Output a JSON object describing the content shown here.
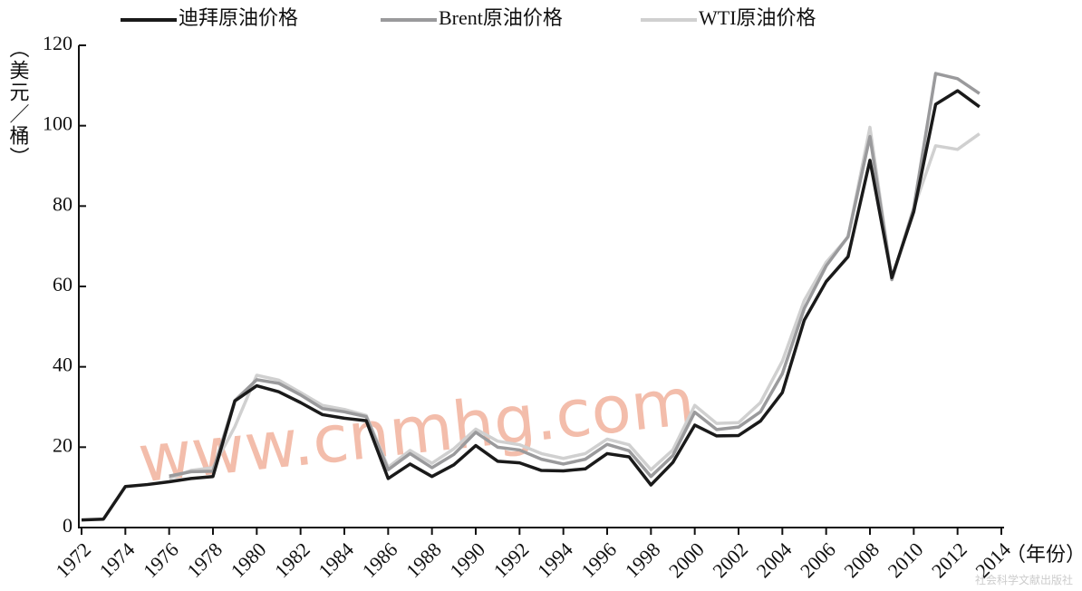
{
  "chart_data": {
    "type": "line",
    "y_label": "（美元／桶）",
    "x_label": "（年份）",
    "watermark": "www.cnmhg.com",
    "credit": "社会科学文献出版社",
    "x": [
      1972,
      1973,
      1974,
      1975,
      1976,
      1977,
      1978,
      1979,
      1980,
      1981,
      1982,
      1983,
      1984,
      1985,
      1986,
      1987,
      1988,
      1989,
      1990,
      1991,
      1992,
      1993,
      1994,
      1995,
      1996,
      1997,
      1998,
      1999,
      2000,
      2001,
      2002,
      2003,
      2004,
      2005,
      2006,
      2007,
      2008,
      2009,
      2010,
      2011,
      2012,
      2013
    ],
    "series": [
      {
        "name": "迪拜原油价格",
        "color": "#1a1a1a",
        "values": [
          1.9,
          2.1,
          10.2,
          10.7,
          11.4,
          12.2,
          12.7,
          31.5,
          35.3,
          33.8,
          31.1,
          28.1,
          27.2,
          26.6,
          12.2,
          15.8,
          12.7,
          15.6,
          20.4,
          16.5,
          16.1,
          14.2,
          14.1,
          14.6,
          18.4,
          17.6,
          10.6,
          16.2,
          25.5,
          22.8,
          22.9,
          26.5,
          33.6,
          51.6,
          61.2,
          67.4,
          91.4,
          62.2,
          78.6,
          105.3,
          108.7,
          104.7
        ]
      },
      {
        "name": "Brent原油价格",
        "color": "#9a9a9c",
        "values": [
          null,
          null,
          null,
          null,
          12.8,
          13.9,
          14.0,
          31.6,
          36.8,
          35.9,
          33.0,
          29.6,
          28.8,
          27.6,
          14.4,
          18.4,
          14.9,
          18.2,
          23.7,
          20.0,
          19.3,
          17.0,
          15.8,
          17.0,
          20.7,
          19.1,
          12.7,
          17.9,
          28.7,
          24.4,
          25.0,
          28.8,
          38.3,
          54.5,
          65.1,
          72.4,
          97.3,
          61.7,
          79.5,
          113.0,
          111.7,
          108.0
        ]
      },
      {
        "name": "WTI原油价格",
        "color": "#d0d0d0",
        "values": [
          null,
          null,
          null,
          null,
          12.2,
          14.2,
          14.9,
          25.1,
          37.9,
          36.7,
          33.6,
          30.4,
          29.4,
          27.9,
          15.0,
          19.2,
          16.0,
          19.6,
          24.5,
          21.5,
          20.6,
          18.4,
          17.2,
          18.4,
          22.0,
          20.6,
          14.4,
          19.3,
          30.4,
          25.9,
          26.1,
          31.1,
          41.4,
          56.5,
          66.0,
          72.3,
          99.6,
          61.7,
          79.4,
          95.0,
          94.1,
          98.0
        ]
      }
    ],
    "xlim": [
      1972,
      2014
    ],
    "xticks": [
      1972,
      1974,
      1976,
      1978,
      1980,
      1982,
      1984,
      1986,
      1988,
      1990,
      1992,
      1994,
      1996,
      1998,
      2000,
      2002,
      2004,
      2006,
      2008,
      2010,
      2012,
      2014
    ],
    "ylim": [
      0,
      120
    ],
    "yticks": [
      0,
      20,
      40,
      60,
      80,
      100,
      120
    ]
  }
}
